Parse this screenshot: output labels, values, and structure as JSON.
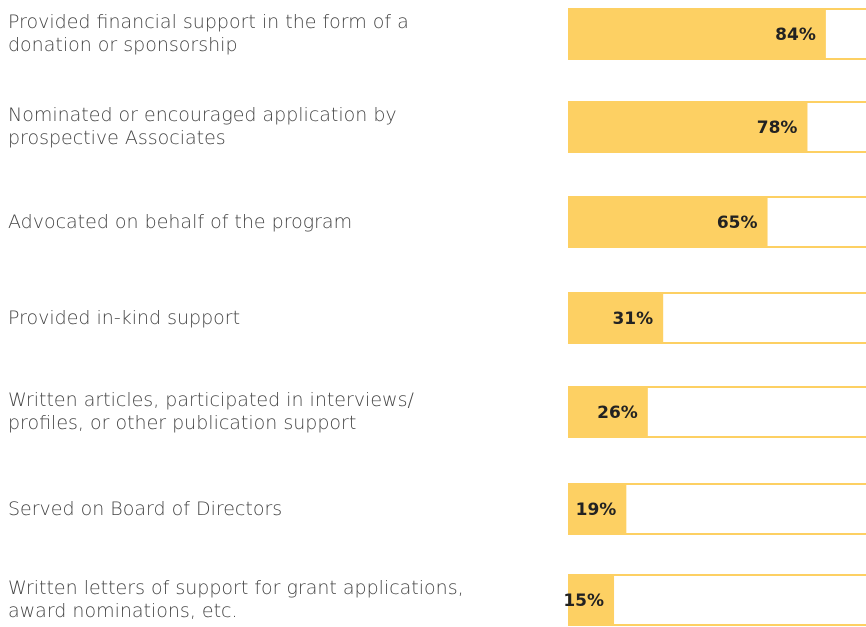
{
  "chart_data": {
    "type": "bar",
    "orientation": "horizontal",
    "color": "#fdd063",
    "categories": [
      "Provided financial support in the form of a donation or sponsorship",
      "Nominated or encouraged application by prospective Associates",
      "Advocated on behalf of the program",
      "Provided in-kind support",
      "Written articles, participated in interviews/ profiles, or other publication support",
      "Served on Board of Directors",
      "Written letters of support for grant applications, award nominations, etc."
    ],
    "values": [
      84,
      78,
      65,
      31,
      26,
      19,
      15
    ],
    "value_labels": [
      "84%",
      "78%",
      "65%",
      "31%",
      "26%",
      "19%",
      "15%"
    ]
  }
}
